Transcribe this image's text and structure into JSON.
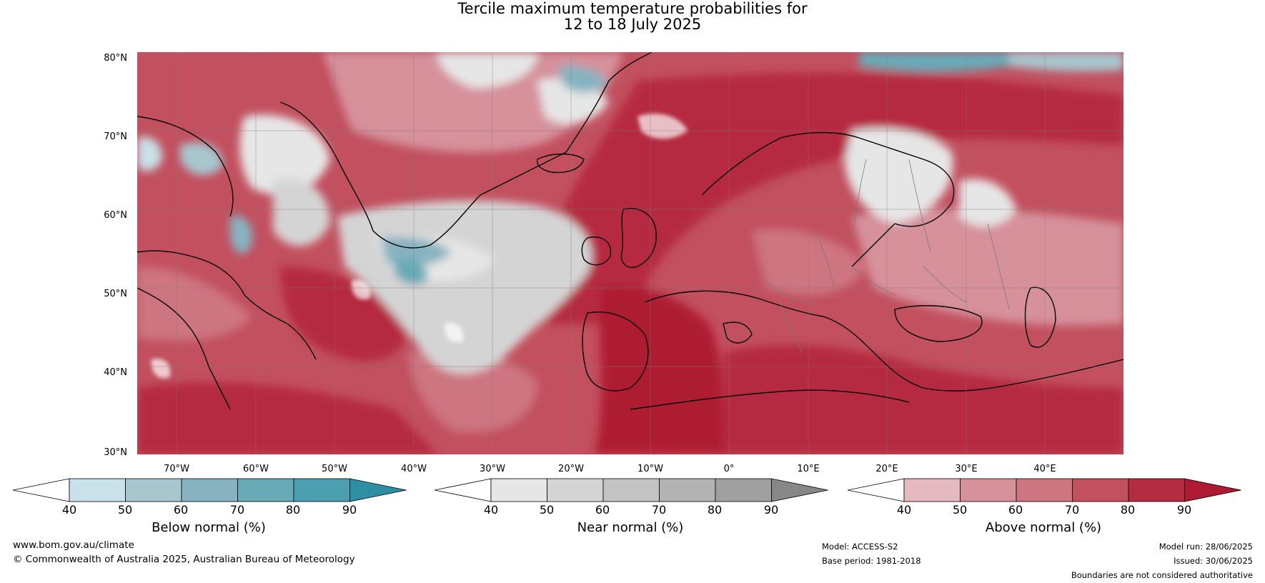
{
  "title": {
    "line1": "Tercile maximum temperature probabilities for",
    "line2": "12 to 18 July 2025"
  },
  "map": {
    "lat_labels": [
      "80°N",
      "70°N",
      "60°N",
      "50°N",
      "40°N",
      "30°N"
    ],
    "lon_labels": [
      "70°W",
      "60°W",
      "50°W",
      "40°W",
      "30°W",
      "20°W",
      "10°W",
      "0°",
      "10°E",
      "20°E",
      "30°E",
      "40°E"
    ]
  },
  "colorbars": [
    {
      "label": "Below normal (%)",
      "ticks": [
        "40",
        "50",
        "60",
        "70",
        "80",
        "90"
      ],
      "colors": [
        "#ffffff",
        "#c9e1e8",
        "#a7c6cd",
        "#87b3c0",
        "#69aab7",
        "#4b9fb1",
        "#2e8ea4"
      ]
    },
    {
      "label": "Near normal (%)",
      "ticks": [
        "40",
        "50",
        "60",
        "70",
        "80",
        "90"
      ],
      "colors": [
        "#ffffff",
        "#e6e6e6",
        "#d4d4d4",
        "#c3c3c3",
        "#b3b3b3",
        "#a0a0a0",
        "#878787"
      ]
    },
    {
      "label": "Above normal (%)",
      "ticks": [
        "40",
        "50",
        "60",
        "70",
        "80",
        "90"
      ],
      "colors": [
        "#ffffff",
        "#e5b9c0",
        "#d6919b",
        "#cd7580",
        "#c2505f",
        "#b52b40",
        "#ae1a33"
      ]
    }
  ],
  "footer": {
    "website": "www.bom.gov.au/climate",
    "copyright": "© Commonwealth of Australia 2025, Australian Bureau of Meteorology",
    "model": "Model: ACCESS-S2",
    "base_period": "Base period: 1981-2018",
    "model_run": "Model run: 28/06/2025",
    "issued": "Issued: 30/06/2025",
    "disclaimer": "Boundaries are not considered authoritative"
  }
}
